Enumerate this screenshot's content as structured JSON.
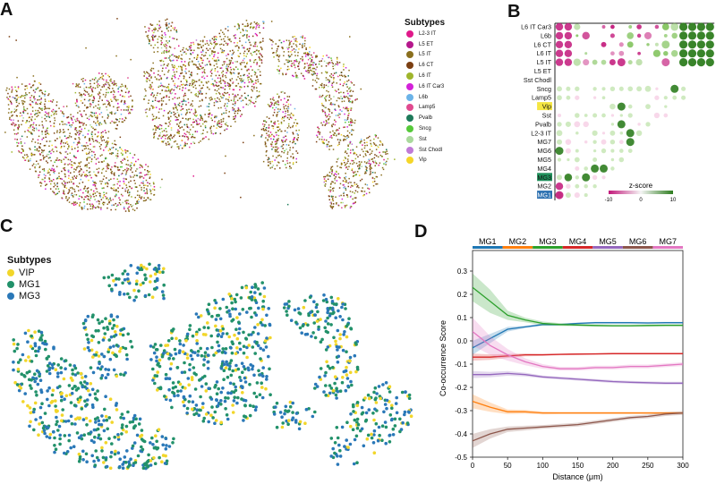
{
  "panel_letters": {
    "a": "A",
    "b": "B",
    "c": "C",
    "d": "D"
  },
  "panel_a": {
    "legend_title": "Subtypes",
    "subtypes": [
      {
        "name": "L2-3 IT",
        "color": "#e0198a"
      },
      {
        "name": "L5 ET",
        "color": "#b5178c"
      },
      {
        "name": "L5 IT",
        "color": "#8a6f1e"
      },
      {
        "name": "L6 CT",
        "color": "#7b3f12"
      },
      {
        "name": "L6 IT",
        "color": "#9fb52c"
      },
      {
        "name": "L6 IT Car3",
        "color": "#d321d9"
      },
      {
        "name": "L6b",
        "color": "#6bb3e8"
      },
      {
        "name": "Lamp5",
        "color": "#e04a8f"
      },
      {
        "name": "Pvalb",
        "color": "#1e7a5a"
      },
      {
        "name": "Sncg",
        "color": "#56c93a"
      },
      {
        "name": "Sst",
        "color": "#a9d99c"
      },
      {
        "name": "Sst Chodl",
        "color": "#c07ad6"
      },
      {
        "name": "Vip",
        "color": "#f5d629"
      }
    ]
  },
  "panel_b": {
    "row_labels": [
      "L6 IT Car3",
      "L6b",
      "L6 CT",
      "L6 IT",
      "L5 IT",
      "L5 ET",
      "Sst Chodl",
      "Sncg",
      "Lamp5",
      "Vip",
      "Sst",
      "Pvalb",
      "L2-3 IT",
      "MG7",
      "MG6",
      "MG5",
      "MG4",
      "MG3",
      "MG2",
      "MG1"
    ],
    "highlighted": {
      "Vip": "#f5e642",
      "MG3": "#1f8f5a",
      "MG1": "#2a6fb0"
    },
    "colorbar": {
      "title": "z-score",
      "ticks": [
        "-10",
        "0",
        "10"
      ],
      "neg_color": "#c2187a",
      "pos_color": "#2e7d1f"
    }
  },
  "panel_c": {
    "legend_title": "Subtypes",
    "subtypes": [
      {
        "name": "VIP",
        "color": "#f2d62a"
      },
      {
        "name": "MG1",
        "color": "#22916a"
      },
      {
        "name": "MG3",
        "color": "#2a78b8"
      }
    ]
  },
  "chart_data": {
    "type": "line",
    "xlabel": "Distance (μm)",
    "ylabel": "Co-occurrence Score",
    "xlim": [
      0,
      300
    ],
    "ylim": [
      -0.5,
      0.35
    ],
    "x_ticks": [
      0,
      50,
      100,
      150,
      200,
      250,
      300
    ],
    "y_ticks": [
      0.3,
      0.2,
      0.1,
      0.0,
      -0.1,
      -0.2,
      -0.3,
      -0.4,
      -0.5
    ],
    "x_tick_labels": [
      "0",
      "50",
      "100",
      "150",
      "200",
      "250",
      "300"
    ],
    "y_tick_labels": [
      "0.3",
      "0.2",
      "0.1",
      "0.0",
      "-0.1",
      "-0.2",
      "-0.3",
      "-0.4",
      "-0.5"
    ],
    "header_labels": [
      {
        "label": "MG1",
        "color": "#1f77b4"
      },
      {
        "label": "MG2",
        "color": "#ff7f0e"
      },
      {
        "label": "MG3",
        "color": "#2ca02c"
      },
      {
        "label": "MG4",
        "color": "#d62728"
      },
      {
        "label": "MG5",
        "color": "#9467bd"
      },
      {
        "label": "MG6",
        "color": "#8c564b"
      },
      {
        "label": "MG7",
        "color": "#e377c2"
      }
    ],
    "x": [
      0,
      25,
      50,
      75,
      100,
      125,
      150,
      175,
      200,
      225,
      250,
      275,
      300
    ],
    "series": [
      {
        "color": "#1f77b4",
        "values": [
          -0.03,
          0.01,
          0.05,
          0.06,
          0.07,
          0.07,
          0.075,
          0.078,
          0.078,
          0.078,
          0.077,
          0.078,
          0.078
        ],
        "band": [
          0.03,
          0.02,
          0.01,
          0.005,
          0.005,
          0.004,
          0.004,
          0.004,
          0.004,
          0.004,
          0.004,
          0.004,
          0.004
        ]
      },
      {
        "color": "#ff7f0e",
        "values": [
          -0.26,
          -0.285,
          -0.305,
          -0.305,
          -0.31,
          -0.31,
          -0.31,
          -0.31,
          -0.31,
          -0.31,
          -0.31,
          -0.31,
          -0.31
        ],
        "band": [
          0.03,
          0.02,
          0.01,
          0.008,
          0.006,
          0.005,
          0.005,
          0.005,
          0.005,
          0.005,
          0.005,
          0.005,
          0.005
        ]
      },
      {
        "color": "#2ca02c",
        "values": [
          0.23,
          0.17,
          0.11,
          0.09,
          0.075,
          0.07,
          0.068,
          0.066,
          0.065,
          0.065,
          0.066,
          0.067,
          0.067
        ],
        "band": [
          0.06,
          0.05,
          0.02,
          0.01,
          0.008,
          0.006,
          0.005,
          0.005,
          0.005,
          0.005,
          0.005,
          0.005,
          0.005
        ]
      },
      {
        "color": "#d62728",
        "values": [
          -0.07,
          -0.07,
          -0.065,
          -0.06,
          -0.06,
          -0.058,
          -0.057,
          -0.056,
          -0.055,
          -0.055,
          -0.055,
          -0.055,
          -0.055
        ],
        "band": [
          0.015,
          0.012,
          0.008,
          0.006,
          0.005,
          0.004,
          0.004,
          0.004,
          0.004,
          0.004,
          0.004,
          0.004,
          0.004
        ]
      },
      {
        "color": "#9467bd",
        "values": [
          -0.145,
          -0.145,
          -0.14,
          -0.145,
          -0.155,
          -0.16,
          -0.165,
          -0.17,
          -0.175,
          -0.178,
          -0.18,
          -0.182,
          -0.182
        ],
        "band": [
          0.015,
          0.012,
          0.01,
          0.008,
          0.006,
          0.006,
          0.006,
          0.006,
          0.006,
          0.006,
          0.006,
          0.006,
          0.006
        ]
      },
      {
        "color": "#8c564b",
        "values": [
          -0.43,
          -0.4,
          -0.38,
          -0.375,
          -0.37,
          -0.365,
          -0.36,
          -0.35,
          -0.34,
          -0.33,
          -0.325,
          -0.315,
          -0.31
        ],
        "band": [
          0.03,
          0.02,
          0.012,
          0.01,
          0.008,
          0.008,
          0.008,
          0.008,
          0.008,
          0.008,
          0.008,
          0.008,
          0.008
        ]
      },
      {
        "color": "#e377c2",
        "values": [
          0.04,
          -0.02,
          -0.06,
          -0.09,
          -0.11,
          -0.12,
          -0.12,
          -0.115,
          -0.115,
          -0.11,
          -0.11,
          -0.105,
          -0.1
        ],
        "band": [
          0.06,
          0.04,
          0.025,
          0.015,
          0.01,
          0.008,
          0.008,
          0.008,
          0.008,
          0.008,
          0.008,
          0.008,
          0.008
        ]
      }
    ]
  }
}
